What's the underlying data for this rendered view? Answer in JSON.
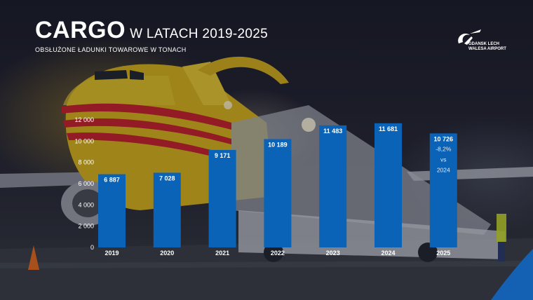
{
  "header": {
    "title_main": "CARGO",
    "title_rest": "W LATACH 2019-2025",
    "subtitle": "OBSŁUŻONE ŁADUNKI TOWAROWE W TONACH"
  },
  "logo": {
    "line1": "GDANSK LECH",
    "line2": "WALESA AIRPORT"
  },
  "colors": {
    "bar": "#0a63b6",
    "text": "#ffffff",
    "accent_corner": "#1461b4"
  },
  "chart_data": {
    "type": "bar",
    "title": "CARGO W LATACH 2019-2025",
    "subtitle": "OBSŁUŻONE ŁADUNKI TOWAROWE W TONACH",
    "categories": [
      "2019",
      "2020",
      "2021",
      "2022",
      "2023",
      "2024",
      "2025"
    ],
    "values": [
      6887,
      7028,
      9171,
      10189,
      11483,
      11681,
      10726
    ],
    "value_labels": [
      "6 887",
      "7 028",
      "9 171",
      "10 189",
      "11 483",
      "11 681",
      "10 726"
    ],
    "yticks": [
      0,
      2000,
      4000,
      6000,
      8000,
      10000,
      12000
    ],
    "ytick_labels": [
      "0",
      "2 000",
      "4 000",
      "6 000",
      "8 000",
      "10 000",
      "12 000"
    ],
    "ylim": [
      0,
      12000
    ],
    "xlabel": "",
    "ylabel": "",
    "grid": false,
    "annotation": {
      "category": "2025",
      "lines": [
        "-8,2%",
        "vs",
        "2024"
      ]
    }
  }
}
